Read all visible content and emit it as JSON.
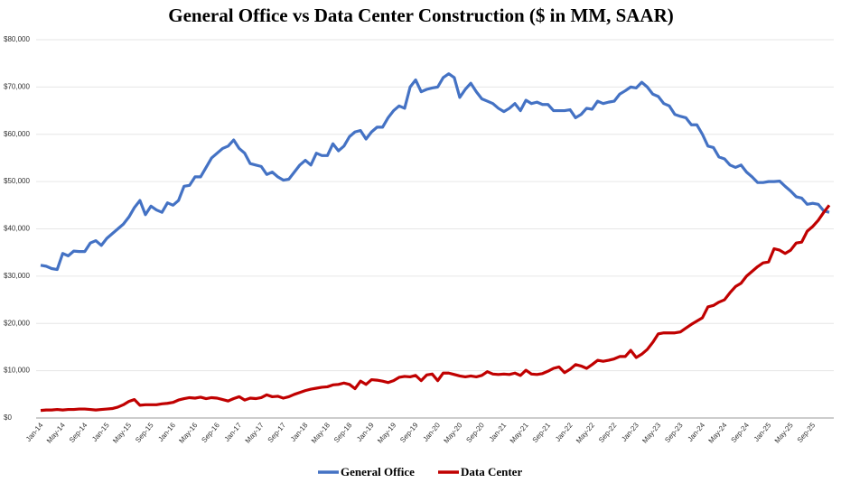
{
  "chart_data": {
    "type": "line",
    "title": "General Office vs Data Center Construction ($ in MM, SAAR)",
    "categories": [
      "Jan-14",
      null,
      null,
      null,
      "May-14",
      null,
      null,
      null,
      "Sep-14",
      null,
      null,
      null,
      "Jan-15",
      null,
      null,
      null,
      "May-15",
      null,
      null,
      null,
      "Sep-15",
      null,
      null,
      null,
      "Jan-16",
      null,
      null,
      null,
      "May-16",
      null,
      null,
      null,
      "Sep-16",
      null,
      null,
      null,
      "Jan-17",
      null,
      null,
      null,
      "May-17",
      null,
      null,
      null,
      "Sep-17",
      null,
      null,
      null,
      "Jan-18",
      null,
      null,
      null,
      "May-18",
      null,
      null,
      null,
      "Sep-18",
      null,
      null,
      null,
      "Jan-19",
      null,
      null,
      null,
      "May-19",
      null,
      null,
      null,
      "Sep-19",
      null,
      null,
      null,
      "Jan-20",
      null,
      null,
      null,
      "May-20",
      null,
      null,
      null,
      "Sep-20",
      null,
      null,
      null,
      "Jan-21",
      null,
      null,
      null,
      "May-21",
      null,
      null,
      null,
      "Sep-21",
      null,
      null,
      null,
      "Jan-22",
      null,
      null,
      null,
      "May-22",
      null,
      null,
      null,
      "Sep-22",
      null,
      null,
      null,
      "Jan-23",
      null,
      null,
      null,
      "May-23",
      null,
      null,
      null,
      "Sep-23",
      null,
      null,
      null,
      "Jan-24",
      null,
      null,
      null,
      "May-24",
      null,
      null,
      null,
      "Sep-24",
      null,
      null,
      null,
      "Jan-25",
      null,
      null,
      null,
      "May-25",
      null,
      null,
      null,
      "Sep-25",
      null,
      null,
      null
    ],
    "series": [
      {
        "name": "General Office",
        "color": "#4472c4",
        "values": [
          32300,
          32100,
          31600,
          31400,
          34800,
          34300,
          35300,
          35200,
          35200,
          37000,
          37500,
          36500,
          38000,
          39000,
          40000,
          41000,
          42500,
          44500,
          46000,
          43000,
          44800,
          44000,
          43500,
          45500,
          45000,
          46000,
          49000,
          49200,
          51000,
          51000,
          53000,
          55000,
          56000,
          57000,
          57500,
          58800,
          57000,
          56000,
          53800,
          53500,
          53200,
          51500,
          52000,
          51000,
          50300,
          50500,
          52000,
          53500,
          54500,
          53500,
          56000,
          55500,
          55500,
          58000,
          56500,
          57500,
          59500,
          60500,
          60800,
          59000,
          60500,
          61500,
          61500,
          63500,
          65000,
          66000,
          65500,
          70000,
          71500,
          69000,
          69500,
          69800,
          70000,
          72000,
          72800,
          72000,
          67800,
          69500,
          70800,
          69000,
          67500,
          67000,
          66500,
          65500,
          64800,
          65500,
          66500,
          65000,
          67200,
          66500,
          66800,
          66300,
          66300,
          65000,
          65000,
          65000,
          65200,
          63500,
          64200,
          65500,
          65300,
          67000,
          66500,
          66800,
          67000,
          68500,
          69200,
          70000,
          69800,
          71000,
          70000,
          68500,
          68000,
          66500,
          66000,
          64200,
          63800,
          63500,
          62000,
          62000,
          60000,
          57500,
          57200,
          55200,
          54800,
          53500,
          53000,
          53500,
          52000,
          51000,
          49800,
          49800,
          50000,
          50000,
          50100,
          49000,
          48000,
          46800,
          46500,
          45200,
          45400,
          45200,
          43800,
          43500
        ]
      },
      {
        "name": "Data Center",
        "color": "#c00000",
        "values": [
          1600,
          1700,
          1700,
          1800,
          1700,
          1800,
          1800,
          1900,
          1900,
          1800,
          1700,
          1800,
          1900,
          2000,
          2300,
          2800,
          3500,
          3900,
          2700,
          2800,
          2800,
          2800,
          3000,
          3100,
          3300,
          3800,
          4100,
          4300,
          4200,
          4400,
          4100,
          4300,
          4200,
          3900,
          3600,
          4100,
          4500,
          3800,
          4200,
          4100,
          4300,
          4900,
          4500,
          4600,
          4200,
          4500,
          5000,
          5400,
          5800,
          6100,
          6300,
          6500,
          6600,
          7000,
          7100,
          7400,
          7100,
          6200,
          7800,
          7100,
          8100,
          8000,
          7800,
          7500,
          7900,
          8600,
          8800,
          8700,
          9000,
          7900,
          9100,
          9300,
          7900,
          9500,
          9500,
          9200,
          8900,
          8700,
          8900,
          8700,
          9000,
          9800,
          9300,
          9200,
          9300,
          9200,
          9500,
          9000,
          10100,
          9300,
          9200,
          9400,
          9900,
          10500,
          10800,
          9600,
          10300,
          11300,
          11000,
          10500,
          11300,
          12200,
          12000,
          12200,
          12500,
          13000,
          13000,
          14300,
          12800,
          13500,
          14500,
          16000,
          17800,
          18000,
          18000,
          18000,
          18200,
          19000,
          19800,
          20500,
          21200,
          23500,
          23800,
          24500,
          25000,
          26500,
          27800,
          28500,
          30000,
          31000,
          32000,
          32800,
          33000,
          35800,
          35500,
          34800,
          35500,
          37000,
          37200,
          39500,
          40500,
          41800,
          43500,
          45000
        ]
      }
    ],
    "ylim": [
      0,
      80000
    ],
    "yticks": [
      {
        "value": 0,
        "label": "$0"
      },
      {
        "value": 10000,
        "label": "$10,000"
      },
      {
        "value": 20000,
        "label": "$20,000"
      },
      {
        "value": 30000,
        "label": "$30,000"
      },
      {
        "value": 40000,
        "label": "$40,000"
      },
      {
        "value": 50000,
        "label": "$50,000"
      },
      {
        "value": 60000,
        "label": "$60,000"
      },
      {
        "value": 70000,
        "label": "$70,000"
      },
      {
        "value": 80000,
        "label": "$80,000"
      }
    ],
    "grid": true,
    "legend": "bottom"
  }
}
